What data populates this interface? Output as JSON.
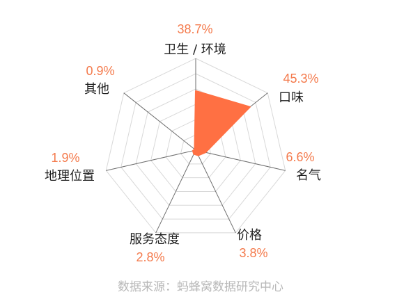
{
  "chart_data": {
    "type": "radar",
    "title": "",
    "categories": [
      "卫生 / 环境",
      "口味",
      "名气",
      "价格",
      "服务态度",
      "地理位置",
      "其他"
    ],
    "values": [
      38.7,
      45.3,
      6.6,
      3.8,
      2.8,
      1.9,
      0.9
    ],
    "value_labels": [
      "38.7%",
      "45.3%",
      "6.6%",
      "3.8%",
      "2.8%",
      "1.9%",
      "0.9%"
    ],
    "unit": "%",
    "range": [
      0,
      60
    ],
    "grid": true,
    "legend": "none"
  },
  "source": "数据来源：蚂蜂窝数据研究中心",
  "colors": {
    "accent": "#ff7043",
    "value_text": "#f47a4c",
    "label_text": "#1f1f1f",
    "grid": "#d8d8d8",
    "spoke": "#6e6e6e",
    "source_text": "#b8b8b8"
  }
}
